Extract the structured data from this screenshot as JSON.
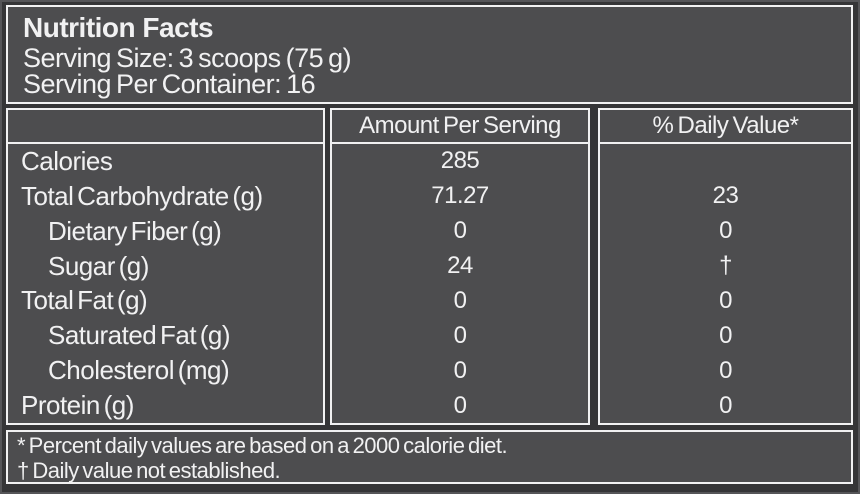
{
  "label": {
    "title": "Nutrition Facts",
    "serving_size": "Serving Size: 3 scoops (75 g)",
    "serving_per_container": "Serving Per Container: 16"
  },
  "table": {
    "columns": [
      "",
      "Amount Per Serving",
      "% Daily Value*"
    ],
    "rows": [
      {
        "name": "Calories",
        "amount": "285",
        "daily_value": ""
      },
      {
        "name": "Total Carbohydrate (g)",
        "amount": "71.27",
        "daily_value": "23"
      },
      {
        "name": "Dietary Fiber (g)",
        "amount": "0",
        "daily_value": "0"
      },
      {
        "name": "Sugar (g)",
        "amount": "24",
        "daily_value": "†"
      },
      {
        "name": "Total Fat (g)",
        "amount": "0",
        "daily_value": "0"
      },
      {
        "name": "Saturated Fat (g)",
        "amount": "0",
        "daily_value": "0"
      },
      {
        "name": "Cholesterol (mg)",
        "amount": "0",
        "daily_value": "0"
      },
      {
        "name": "Protein (g)",
        "amount": "0",
        "daily_value": "0"
      }
    ]
  },
  "footnotes": [
    "* Percent daily values are based on a 2000 calorie diet.",
    "† Daily value not established."
  ],
  "colors": {
    "panel_fill": "#4d4d4f",
    "background": "#353537",
    "border": "#f1f1f2",
    "text": "#f1f1f2"
  }
}
